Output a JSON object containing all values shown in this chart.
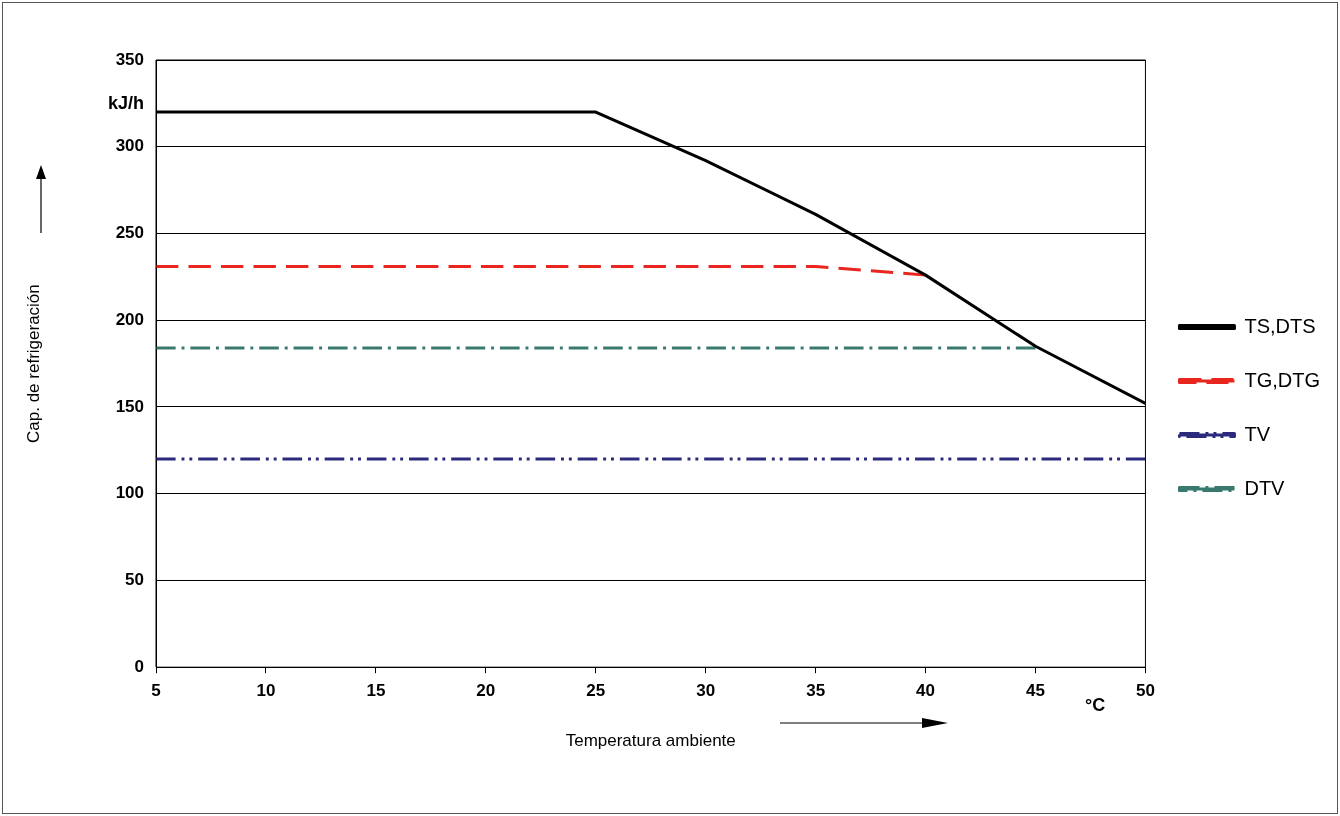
{
  "chart_data": {
    "type": "line",
    "xlabel": "Temperatura ambiente",
    "ylabel": "Cap. de refrigeración",
    "xlim": [
      5,
      50
    ],
    "xticks": [
      5,
      10,
      15,
      20,
      25,
      30,
      35,
      40,
      45,
      50
    ],
    "ylim": [
      0,
      350
    ],
    "yticks": [
      0,
      50,
      100,
      150,
      200,
      250,
      300,
      350
    ],
    "grid": "y",
    "legend": "right",
    "marker": "none",
    "annotations": [
      "kJ/h",
      "°C"
    ],
    "series": [
      {
        "name": "TS,DTS",
        "color": "#000000",
        "line_style": "solid",
        "x": [
          5,
          25,
          30,
          35,
          40,
          45,
          50
        ],
        "values": [
          320,
          320,
          292,
          261,
          226,
          185,
          152
        ]
      },
      {
        "name": "TG,DTG",
        "color": "#e8251f",
        "line_style": "dashed",
        "x": [
          5,
          35,
          40
        ],
        "values": [
          231,
          231,
          226
        ]
      },
      {
        "name": "TV",
        "color": "#2b2a7c",
        "line_style": "dashdotdot",
        "x": [
          5,
          50
        ],
        "values": [
          120,
          120
        ]
      },
      {
        "name": "DTV",
        "color": "#3a7a6e",
        "line_style": "dashdot",
        "x": [
          5,
          45
        ],
        "values": [
          184,
          184
        ]
      }
    ]
  }
}
